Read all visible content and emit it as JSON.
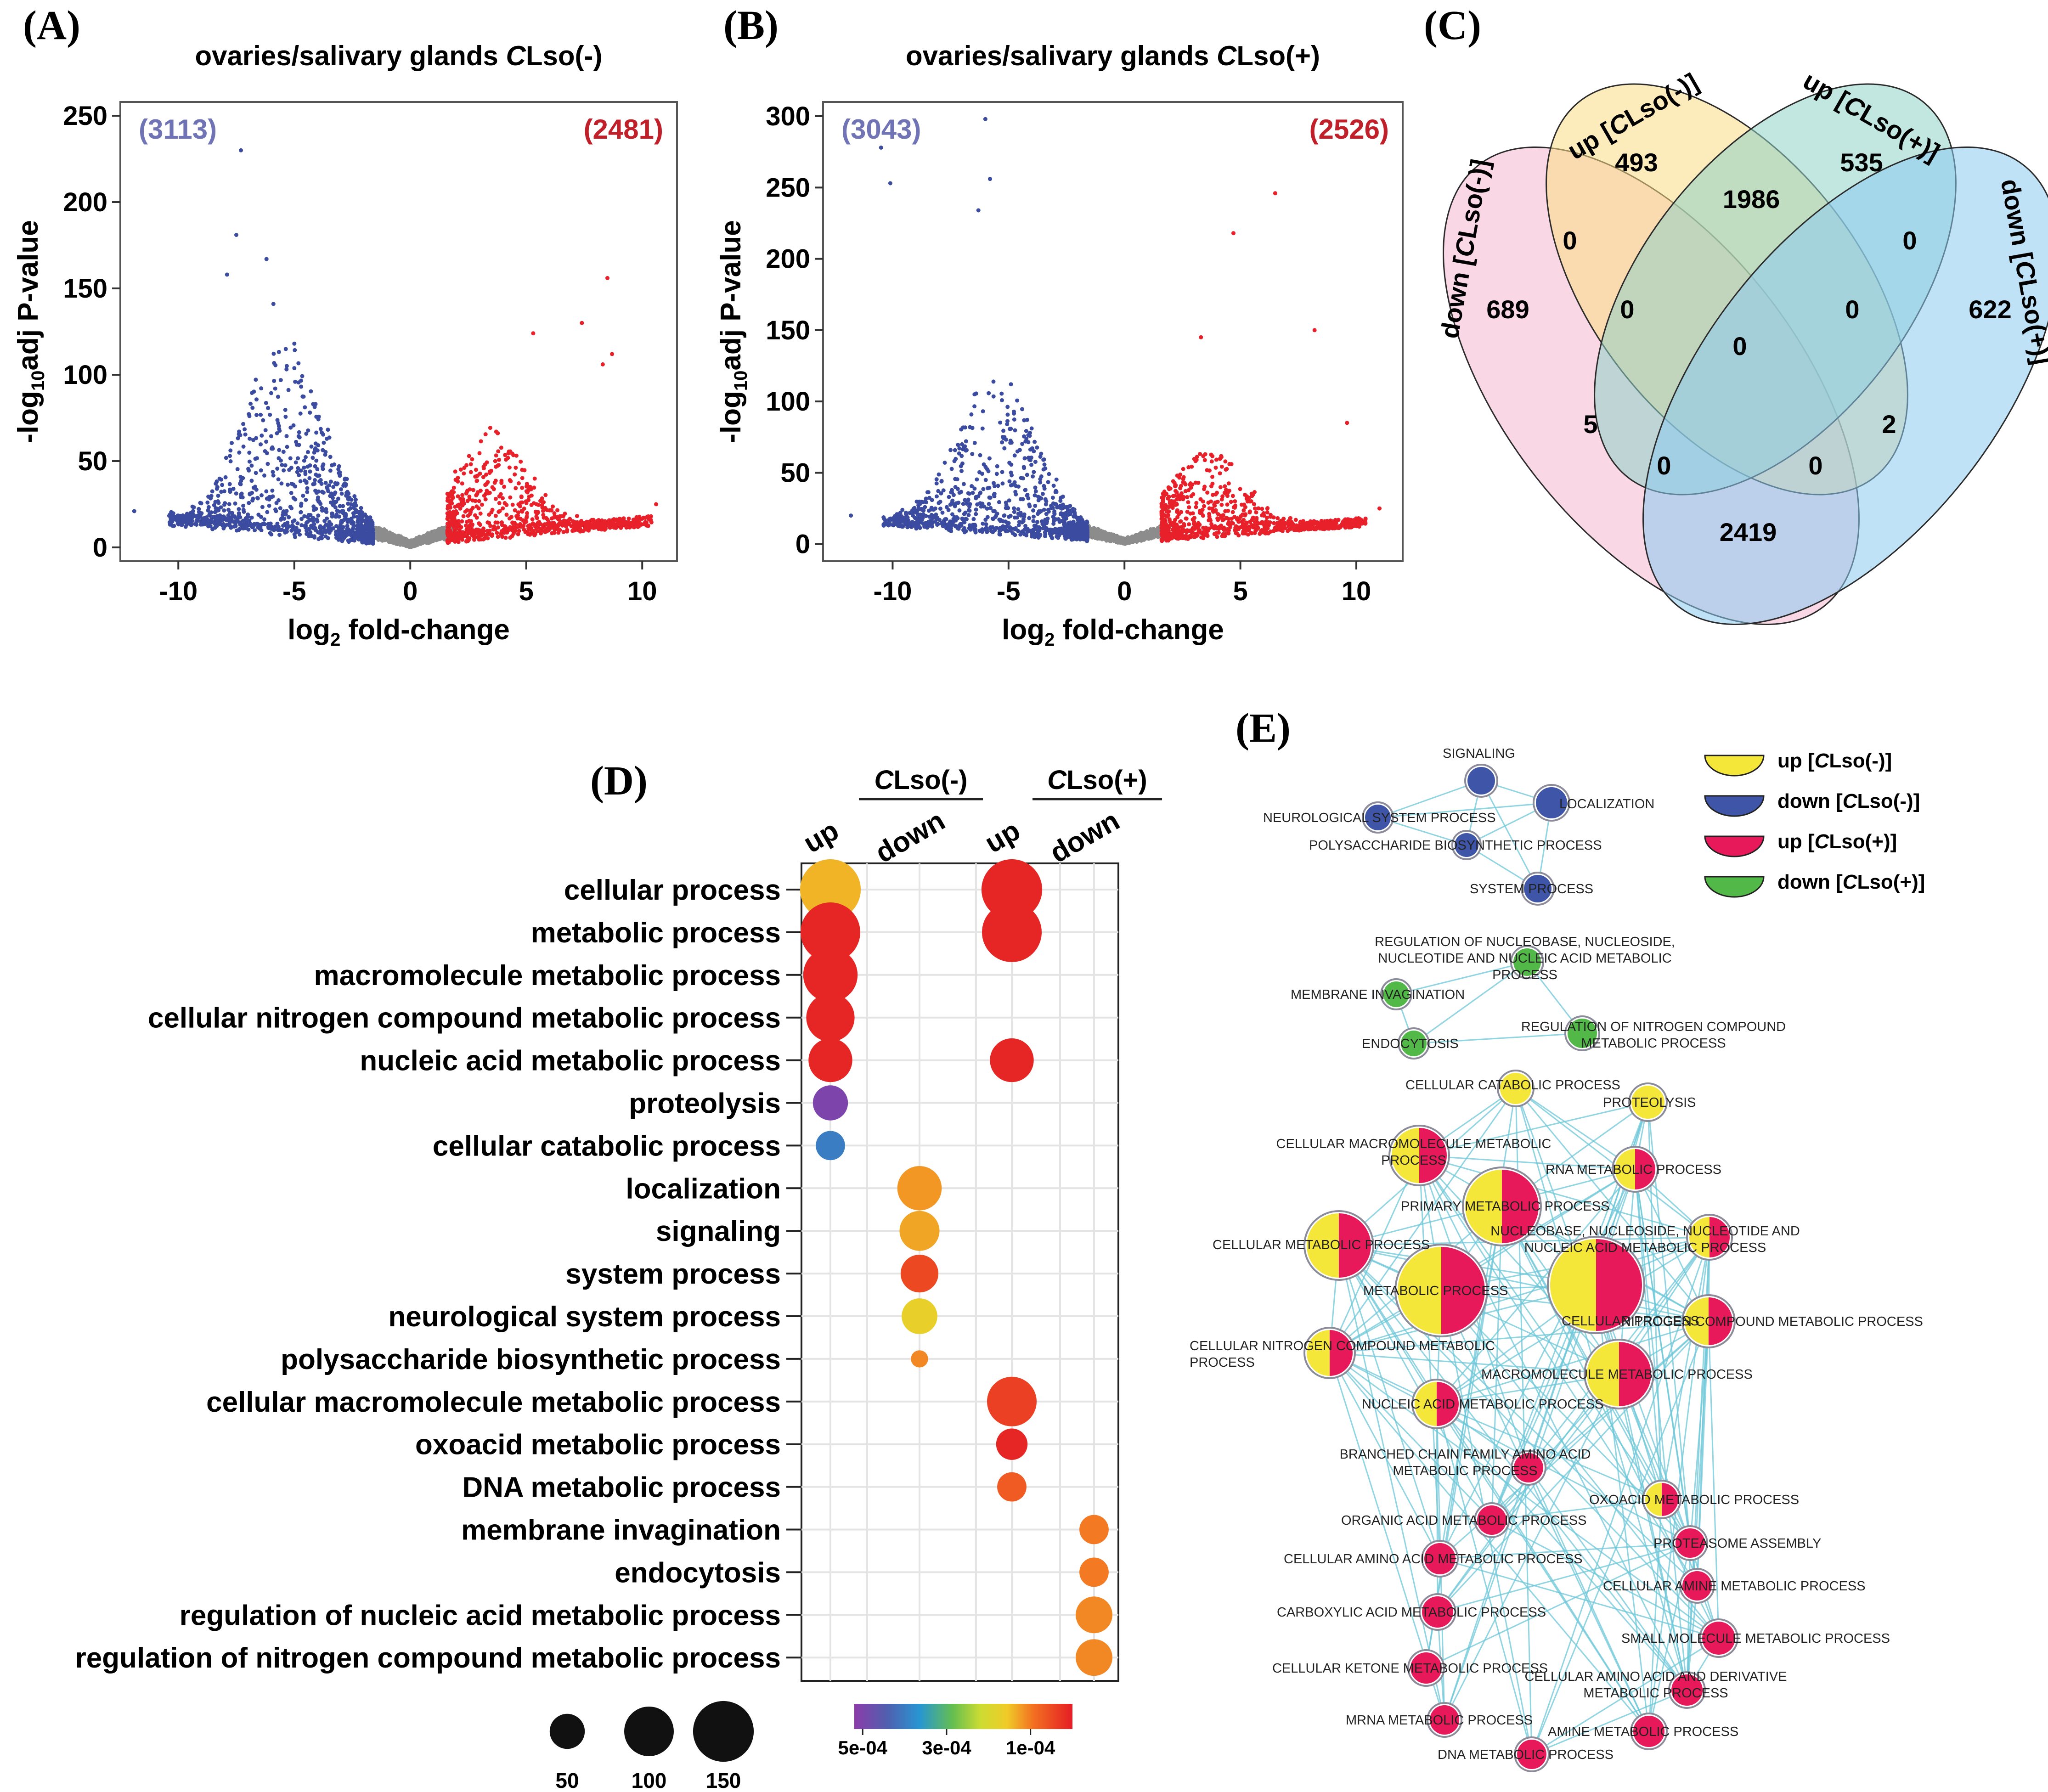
{
  "chart_data": [
    {
      "panel": "(A)",
      "type": "scatter",
      "title_main": "ovaries/salivary glands ",
      "title_italic": "C",
      "title_tail": "Lso(-)",
      "xlabel_pre": "log",
      "xlabel_sub": "2",
      "xlabel_post": " fold-change",
      "ylabel_pre": "-log",
      "ylabel_sub": "10",
      "ylabel_post": "adj P-value",
      "xlim": [
        -12.5,
        11.5
      ],
      "ylim": [
        -8,
        258
      ],
      "xticks": [
        -10,
        -5,
        0,
        5,
        10
      ],
      "xtick_labels": [
        "-10",
        "-5",
        "0",
        "5",
        "10"
      ],
      "yticks": [
        0,
        50,
        100,
        150,
        200,
        250
      ],
      "ytick_labels": [
        "0",
        "50",
        "100",
        "150",
        "200",
        "250"
      ],
      "count_down": "(3113)",
      "count_up": "(2481)",
      "series": [
        {
          "name": "down-regulated",
          "color": "#3b4ba0",
          "count": 3113,
          "extremes": [
            [
              -7.3,
              230
            ],
            [
              -7.5,
              181
            ],
            [
              -6.2,
              167
            ],
            [
              -7.9,
              158
            ],
            [
              -5.9,
              141
            ],
            [
              -11.9,
              21
            ],
            [
              -5.0,
              118
            ]
          ]
        },
        {
          "name": "not significant",
          "color": "#8c8c8c"
        },
        {
          "name": "up-regulated",
          "color": "#e8202a",
          "count": 2481,
          "extremes": [
            [
              8.5,
              156
            ],
            [
              8.7,
              112
            ],
            [
              8.3,
              106
            ],
            [
              7.4,
              130
            ],
            [
              5.3,
              124
            ],
            [
              10.6,
              25
            ]
          ]
        }
      ]
    },
    {
      "panel": "(B)",
      "type": "scatter",
      "title_main": "ovaries/salivary glands ",
      "title_italic": "C",
      "title_tail": "Lso(+)",
      "xlabel_pre": "log",
      "xlabel_sub": "2",
      "xlabel_post": " fold-change",
      "ylabel_pre": "-log",
      "ylabel_sub": "10",
      "ylabel_post": "adj P-value",
      "xlim": [
        -13,
        12
      ],
      "ylim": [
        -12,
        310
      ],
      "xticks": [
        -10,
        -5,
        0,
        5,
        10
      ],
      "xtick_labels": [
        "-10",
        "-5",
        "0",
        "5",
        "10"
      ],
      "yticks": [
        0,
        50,
        100,
        150,
        200,
        250,
        300
      ],
      "ytick_labels": [
        "0",
        "50",
        "100",
        "150",
        "200",
        "250",
        "300"
      ],
      "count_down": "(3043)",
      "count_up": "(2526)",
      "series": [
        {
          "name": "down-regulated",
          "color": "#3b4ba0",
          "count": 3043,
          "extremes": [
            [
              -6.0,
              298
            ],
            [
              -10.5,
              278
            ],
            [
              -5.8,
              256
            ],
            [
              -10.1,
              253
            ],
            [
              -6.3,
              234
            ],
            [
              -11.8,
              20
            ]
          ]
        },
        {
          "name": "not significant",
          "color": "#8c8c8c"
        },
        {
          "name": "up-regulated",
          "color": "#e8202a",
          "count": 2526,
          "extremes": [
            [
              6.5,
              246
            ],
            [
              4.7,
              218
            ],
            [
              8.2,
              150
            ],
            [
              3.3,
              145
            ],
            [
              9.6,
              85
            ],
            [
              11.0,
              25
            ]
          ]
        }
      ]
    },
    {
      "panel": "(D)",
      "type": "bubble",
      "groups": [
        {
          "label_italic": "C",
          "label_tail": "Lso(-)"
        },
        {
          "label_italic": "C",
          "label_tail": "Lso(+)"
        }
      ],
      "columns": [
        "up",
        "down",
        "up",
        "down"
      ],
      "rows": [
        "cellular process",
        "metabolic process",
        "macromolecule metabolic process",
        "cellular nitrogen compound metabolic process",
        "nucleic acid metabolic process",
        "proteolysis",
        "cellular catabolic process",
        "localization",
        "signaling",
        "system process",
        "neurological system process",
        "polysaccharide biosynthetic process",
        "cellular macromolecule metabolic process",
        "oxoacid metabolic process",
        "DNA metabolic process",
        "membrane invagination",
        "endocytosis",
        "regulation of nucleic acid metabolic process",
        "regulation of nitrogen compound metabolic process"
      ],
      "points": [
        {
          "row": 0,
          "col": 0,
          "count": 150,
          "p": 0.00014
        },
        {
          "row": 1,
          "col": 0,
          "count": 145,
          "p": 1e-05
        },
        {
          "row": 2,
          "col": 0,
          "count": 120,
          "p": 1e-05
        },
        {
          "row": 3,
          "col": 0,
          "count": 95,
          "p": 1e-05
        },
        {
          "row": 4,
          "col": 0,
          "count": 78,
          "p": 1e-05
        },
        {
          "row": 5,
          "col": 0,
          "count": 50,
          "p": 0.0005
        },
        {
          "row": 6,
          "col": 0,
          "count": 35,
          "p": 0.0004
        },
        {
          "row": 7,
          "col": 1,
          "count": 80,
          "p": 0.00012
        },
        {
          "row": 8,
          "col": 1,
          "count": 65,
          "p": 0.00013
        },
        {
          "row": 9,
          "col": 1,
          "count": 58,
          "p": 5e-05
        },
        {
          "row": 10,
          "col": 1,
          "count": 52,
          "p": 0.00017
        },
        {
          "row": 11,
          "col": 1,
          "count": 12,
          "p": 0.00011
        },
        {
          "row": 0,
          "col": 2,
          "count": 150,
          "p": 1e-05
        },
        {
          "row": 1,
          "col": 2,
          "count": 145,
          "p": 1e-05
        },
        {
          "row": 4,
          "col": 2,
          "count": 78,
          "p": 1e-05
        },
        {
          "row": 12,
          "col": 2,
          "count": 100,
          "p": 4e-05
        },
        {
          "row": 13,
          "col": 2,
          "count": 40,
          "p": 1e-05
        },
        {
          "row": 14,
          "col": 2,
          "count": 35,
          "p": 7e-05
        },
        {
          "row": 15,
          "col": 3,
          "count": 35,
          "p": 0.0001
        },
        {
          "row": 16,
          "col": 3,
          "count": 35,
          "p": 0.0001
        },
        {
          "row": 17,
          "col": 3,
          "count": 55,
          "p": 0.00011
        },
        {
          "row": 18,
          "col": 3,
          "count": 55,
          "p": 0.00011
        }
      ],
      "size_legend": [
        {
          "value": 50,
          "label": "50"
        },
        {
          "value": 100,
          "label": "100"
        },
        {
          "value": 150,
          "label": "150"
        }
      ],
      "color_legend": {
        "range": [
          0.00052,
          0.0
        ],
        "ticks": [
          0.0005,
          0.0003,
          0.0001
        ],
        "tick_labels": [
          "5e-04",
          "3e-04",
          "1e-04"
        ]
      }
    }
  ],
  "panels": {
    "A": "(A)",
    "B": "(B)",
    "C": "(C)",
    "D": "(D)",
    "E": "(E)"
  },
  "venn": {
    "sets": [
      {
        "label_pre": "down [",
        "label_italic": "C",
        "label_post": "Lso(-)]",
        "color": "#f4b6cf"
      },
      {
        "label_pre": "up [",
        "label_italic": "C",
        "label_post": "Lso(-)]",
        "color": "#fbdc84"
      },
      {
        "label_pre": "up [",
        "label_italic": "C",
        "label_post": "Lso(+)]",
        "color": "#8fd1c6"
      },
      {
        "label_pre": "down [",
        "label_italic": "C",
        "label_post": "Lso(+)]",
        "color": "#8ccbf0"
      }
    ],
    "counts": {
      "up_minus_only": "493",
      "up_plus_only": "535",
      "up_minus_up_plus": "1986",
      "down_minus_only": "689",
      "down_plus_only": "622",
      "down_minus_up_minus": "0",
      "up_plus_down_plus": "0",
      "triple_left": "0",
      "triple_right": "0",
      "all_four": "0",
      "down_minus_up_plus": "5",
      "up_minus_down_plus": "2",
      "bottom_left": "0",
      "bottom_right": "0",
      "down_minus_down_plus": "2419"
    }
  },
  "network": {
    "legend": [
      {
        "label_pre": "up [",
        "label_italic": "C",
        "label_post": "Lso(-)]",
        "color": "#f5e63a"
      },
      {
        "label_pre": "down [",
        "label_italic": "C",
        "label_post": "Lso(-)]",
        "color": "#3f55a8"
      },
      {
        "label_pre": "up [",
        "label_italic": "C",
        "label_post": "Lso(+)]",
        "color": "#e8193c"
      },
      {
        "label_pre": "down [",
        "label_italic": "C",
        "label_post": "Lso(+)]",
        "color": "#4fb84a"
      }
    ],
    "edge_color": "#6cc7d8",
    "colors": {
      "Y": "#f5e63a",
      "B": "#3f55a8",
      "R": "#e8195a",
      "G": "#52b848"
    },
    "nodes": [
      {
        "label": "SIGNALING",
        "c": [
          "B"
        ],
        "count": 30
      },
      {
        "label": "LOCALIZATION",
        "c": [
          "B"
        ],
        "count": 34
      },
      {
        "label": "NEUROLOGICAL SYSTEM PROCESS",
        "c": [
          "B"
        ],
        "count": 28
      },
      {
        "label": "POLYSACCHARIDE BIOSYNTHETIC PROCESS",
        "c": [
          "B"
        ],
        "count": 26
      },
      {
        "label": "SYSTEM PROCESS",
        "c": [
          "B"
        ],
        "count": 30
      },
      {
        "label": "REGULATION OF NUCLEOBASE, NUCLEOSIDE,|NUCLEOTIDE AND NUCLEIC ACID METABOLIC|PROCESS",
        "c": [
          "G"
        ],
        "count": 30
      },
      {
        "label": "MEMBRANE INVAGINATION",
        "c": [
          "G"
        ],
        "count": 28
      },
      {
        "label": "REGULATION OF NITROGEN COMPOUND|METABOLIC PROCESS",
        "c": [
          "G"
        ],
        "count": 32
      },
      {
        "label": "ENDOCYTOSIS",
        "c": [
          "G"
        ],
        "count": 28
      },
      {
        "label": "CELLULAR CATABOLIC PROCESS",
        "c": [
          "Y"
        ],
        "count": 34
      },
      {
        "label": "PROTEOLYSIS",
        "c": [
          "Y"
        ],
        "count": 36
      },
      {
        "label": "CELLULAR MACROMOLECULE METABOLIC|PROCESS",
        "c": [
          "Y",
          "R"
        ],
        "count": 60
      },
      {
        "label": "RNA METABOLIC PROCESS",
        "c": [
          "Y",
          "R"
        ],
        "count": 44
      },
      {
        "label": "PRIMARY METABOLIC PROCESS",
        "c": [
          "Y",
          "R"
        ],
        "count": 80
      },
      {
        "label": "NUCLEOBASE, NUCLEOSIDE, NUCLEOTIDE AND|NUCLEIC ACID METABOLIC PROCESS",
        "c": [
          "Y",
          "R"
        ],
        "count": 44
      },
      {
        "label": "CELLULAR METABOLIC PROCESS",
        "c": [
          "Y",
          "R"
        ],
        "count": 70
      },
      {
        "label": "METABOLIC PROCESS",
        "c": [
          "Y",
          "R"
        ],
        "count": 95
      },
      {
        "label": "CELLULAR PROCESS",
        "c": [
          "Y",
          "R"
        ],
        "count": 100
      },
      {
        "label": "NITROGEN COMPOUND METABOLIC PROCESS",
        "c": [
          "Y",
          "R"
        ],
        "count": 52
      },
      {
        "label": "CELLULAR NITROGEN COMPOUND METABOLIC|PROCESS",
        "c": [
          "Y",
          "R"
        ],
        "count": 50
      },
      {
        "label": "MACROMOLECULE METABOLIC PROCESS",
        "c": [
          "Y",
          "R"
        ],
        "count": 70
      },
      {
        "label": "NUCLEIC ACID METABOLIC PROCESS",
        "c": [
          "Y",
          "R"
        ],
        "count": 48
      },
      {
        "label": "BRANCHED CHAIN FAMILY AMINO ACID|METABOLIC PROCESS",
        "c": [
          "R"
        ],
        "count": 32
      },
      {
        "label": "OXOACID METABOLIC PROCESS",
        "c": [
          "Y",
          "R"
        ],
        "count": 36
      },
      {
        "label": "ORGANIC ACID METABOLIC PROCESS",
        "c": [
          "R"
        ],
        "count": 32
      },
      {
        "label": "PROTEASOME ASSEMBLY",
        "c": [
          "R"
        ],
        "count": 32
      },
      {
        "label": "CELLULAR AMINO ACID METABOLIC PROCESS",
        "c": [
          "R"
        ],
        "count": 34
      },
      {
        "label": "CELLULAR AMINE METABOLIC PROCESS",
        "c": [
          "R"
        ],
        "count": 32
      },
      {
        "label": "CARBOXYLIC ACID METABOLIC PROCESS",
        "c": [
          "R"
        ],
        "count": 34
      },
      {
        "label": "SMALL MOLECULE METABOLIC PROCESS",
        "c": [
          "R"
        ],
        "count": 36
      },
      {
        "label": "CELLULAR KETONE METABOLIC PROCESS",
        "c": [
          "R"
        ],
        "count": 34
      },
      {
        "label": "CELLULAR AMINO ACID AND DERIVATIVE|METABOLIC PROCESS",
        "c": [
          "R"
        ],
        "count": 34
      },
      {
        "label": "MRNA METABOLIC PROCESS",
        "c": [
          "R"
        ],
        "count": 32
      },
      {
        "label": "AMINE METABOLIC PROCESS",
        "c": [
          "R"
        ],
        "count": 34
      },
      {
        "label": "DNA METABOLIC PROCESS",
        "c": [
          "R"
        ],
        "count": 32
      }
    ]
  }
}
